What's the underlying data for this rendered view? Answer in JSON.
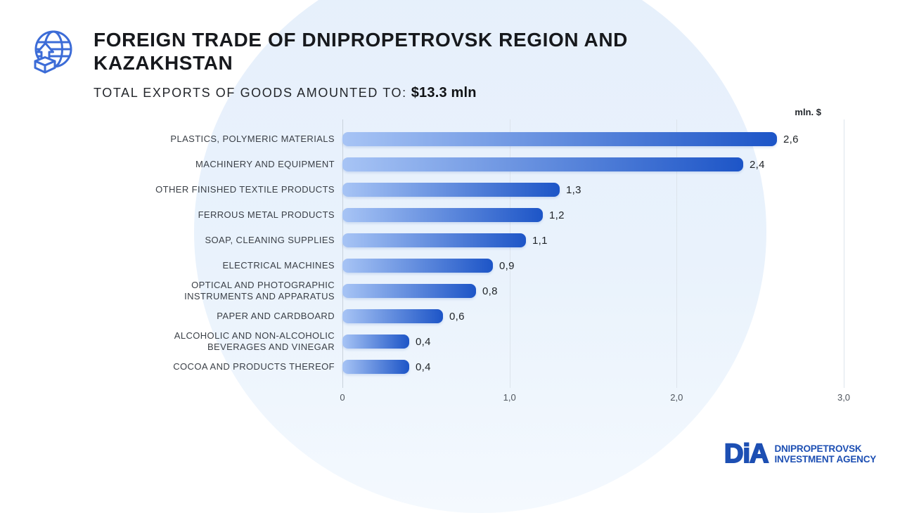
{
  "page": {
    "background": "#ffffff",
    "blob_color": "#e8f1fb",
    "accent_blue": "#1d55c7"
  },
  "header": {
    "icon": "globe-export-icon",
    "title": "FOREIGN TRADE OF DNIPROPETROVSK REGION AND KAZAKHSTAN",
    "subtitle_label": "TOTAL EXPORTS OF GOODS AMOUNTED TO:",
    "subtitle_value": "$13.3 mln"
  },
  "chart_data": {
    "type": "bar",
    "orientation": "horizontal",
    "unit_label": "mln. $",
    "categories": [
      "PLASTICS, POLYMERIC MATERIALS",
      "MACHINERY AND EQUIPMENT",
      "OTHER FINISHED TEXTILE PRODUCTS",
      "FERROUS METAL PRODUCTS",
      "SOAP, CLEANING SUPPLIES",
      "ELECTRICAL MACHINES",
      "OPTICAL AND PHOTOGRAPHIC INSTRUMENTS AND APPARATUS",
      "PAPER AND CARDBOARD",
      "ALCOHOLIC AND NON-ALCOHOLIC BEVERAGES AND VINEGAR",
      "COCOA AND PRODUCTS THEREOF"
    ],
    "values": [
      2.6,
      2.4,
      1.3,
      1.2,
      1.1,
      0.9,
      0.8,
      0.6,
      0.4,
      0.4
    ],
    "value_labels": [
      "2,6",
      "2,4",
      "1,3",
      "1,2",
      "1,1",
      "0,9",
      "0,8",
      "0,6",
      "0,4",
      "0,4"
    ],
    "x_ticks": [
      {
        "value": 0,
        "label": "0"
      },
      {
        "value": 1,
        "label": "1,0"
      },
      {
        "value": 2,
        "label": "2,0"
      },
      {
        "value": 3,
        "label": "3,0"
      }
    ],
    "xlim": [
      0,
      3
    ],
    "grid": "vertical",
    "legend": "none",
    "bar_gradient_start": "#a7c4f5",
    "bar_gradient_end": "#1d55c7"
  },
  "footer": {
    "logo_text": "DiA",
    "org_name_line1": "DNIPROPETROVSK",
    "org_name_line2": "INVESTMENT AGENCY",
    "brand_color": "#1d4fb3"
  }
}
